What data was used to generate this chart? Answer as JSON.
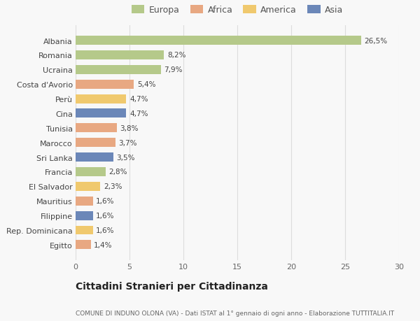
{
  "countries": [
    "Albania",
    "Romania",
    "Ucraina",
    "Costa d'Avorio",
    "Perù",
    "Cina",
    "Tunisia",
    "Marocco",
    "Sri Lanka",
    "Francia",
    "El Salvador",
    "Mauritius",
    "Filippine",
    "Rep. Dominicana",
    "Egitto"
  ],
  "values": [
    26.5,
    8.2,
    7.9,
    5.4,
    4.7,
    4.7,
    3.8,
    3.7,
    3.5,
    2.8,
    2.3,
    1.6,
    1.6,
    1.6,
    1.4
  ],
  "labels": [
    "26,5%",
    "8,2%",
    "7,9%",
    "5,4%",
    "4,7%",
    "4,7%",
    "3,8%",
    "3,7%",
    "3,5%",
    "2,8%",
    "2,3%",
    "1,6%",
    "1,6%",
    "1,6%",
    "1,4%"
  ],
  "colors": [
    "#b5c98a",
    "#b5c98a",
    "#b5c98a",
    "#e8a882",
    "#f0c96e",
    "#6b87b8",
    "#e8a882",
    "#e8a882",
    "#6b87b8",
    "#b5c98a",
    "#f0c96e",
    "#e8a882",
    "#6b87b8",
    "#f0c96e",
    "#e8a882"
  ],
  "legend_labels": [
    "Europa",
    "Africa",
    "America",
    "Asia"
  ],
  "legend_colors": [
    "#b5c98a",
    "#e8a882",
    "#f0c96e",
    "#6b87b8"
  ],
  "xlim": [
    0,
    30
  ],
  "xticks": [
    0,
    5,
    10,
    15,
    20,
    25,
    30
  ],
  "title": "Cittadini Stranieri per Cittadinanza",
  "subtitle": "COMUNE DI INDUNO OLONA (VA) - Dati ISTAT al 1° gennaio di ogni anno - Elaborazione TUTTITALIA.IT",
  "bg_color": "#f8f8f8",
  "grid_color": "#dddddd",
  "bar_height": 0.62
}
